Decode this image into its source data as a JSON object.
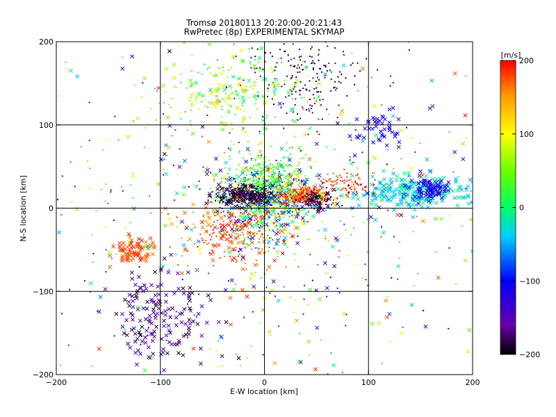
{
  "chart_data": {
    "type": "scatter",
    "title": "Tromsø 20180113 20:20:00-20:21:43",
    "subtitle": "RwPretec (8p) EXPERIMENTAL SKYMAP",
    "xlabel": "E-W location [km]",
    "ylabel": "N-S location [km]",
    "xlim": [
      -200,
      200
    ],
    "ylim": [
      -200,
      200
    ],
    "x_ticks": [
      -200,
      -100,
      0,
      100,
      200
    ],
    "y_ticks": [
      -200,
      -100,
      0,
      100,
      200
    ],
    "x_tick_labels": [
      "−200",
      "−100",
      "0",
      "100",
      "200"
    ],
    "y_tick_labels": [
      "−200",
      "−100",
      "0",
      "100",
      "200"
    ],
    "grid": true,
    "grid_values_x": [
      -100,
      0,
      100
    ],
    "grid_values_y": [
      -100,
      0,
      100
    ],
    "colorbar": {
      "label": "[m/s]",
      "range": [
        -200,
        200
      ],
      "ticks": [
        200,
        100,
        0,
        -100,
        -200
      ],
      "tick_labels": [
        "200",
        "100",
        "0",
        "−100",
        "−200"
      ],
      "colors": [
        "#000000",
        "#6600aa",
        "#0000ff",
        "#00ccff",
        "#00ff66",
        "#66ff00",
        "#ffff00",
        "#ff9900",
        "#ff0000"
      ]
    },
    "marker_types": [
      "dot",
      "x"
    ],
    "clusters": [
      {
        "cx": 0,
        "cy": 10,
        "sx": 22,
        "sy": 22,
        "n": 650,
        "vel": [
          -150,
          120
        ],
        "marker": "mixed"
      },
      {
        "cx": 5,
        "cy": 35,
        "sx": 18,
        "sy": 15,
        "n": 300,
        "vel": [
          0,
          60
        ],
        "marker": "dot"
      },
      {
        "cx": -20,
        "cy": 15,
        "sx": 14,
        "sy": 6,
        "n": 260,
        "vel": [
          -200,
          -170
        ],
        "marker": "mixed"
      },
      {
        "cx": 40,
        "cy": 15,
        "sx": 12,
        "sy": 6,
        "n": 200,
        "vel": [
          150,
          200
        ],
        "marker": "mixed"
      },
      {
        "cx": 50,
        "cy": 8,
        "sx": 8,
        "sy": 5,
        "n": 110,
        "vel": [
          -200,
          -160
        ],
        "marker": "mixed"
      },
      {
        "cx": 140,
        "cy": 20,
        "sx": 30,
        "sy": 10,
        "n": 240,
        "vel": [
          -60,
          0
        ],
        "marker": "x"
      },
      {
        "cx": 160,
        "cy": 22,
        "sx": 10,
        "sy": 7,
        "n": 80,
        "vel": [
          -130,
          -100
        ],
        "marker": "x"
      },
      {
        "cx": 80,
        "cy": 30,
        "sx": 15,
        "sy": 8,
        "n": 90,
        "vel": [
          160,
          200
        ],
        "marker": "dot"
      },
      {
        "cx": 40,
        "cy": 160,
        "sx": 30,
        "sy": 25,
        "n": 190,
        "vel": [
          -200,
          -170
        ],
        "marker": "dot"
      },
      {
        "cx": -30,
        "cy": 140,
        "sx": 35,
        "sy": 22,
        "n": 220,
        "vel": [
          -20,
          130
        ],
        "marker": "mixed"
      },
      {
        "cx": -30,
        "cy": -30,
        "sx": 22,
        "sy": 18,
        "n": 230,
        "vel": [
          150,
          200
        ],
        "marker": "mixed"
      },
      {
        "cx": -125,
        "cy": -50,
        "sx": 10,
        "sy": 10,
        "n": 80,
        "vel": [
          160,
          200
        ],
        "marker": "x"
      },
      {
        "cx": -100,
        "cy": -130,
        "sx": 20,
        "sy": 30,
        "n": 160,
        "vel": [
          -200,
          -130
        ],
        "marker": "x"
      },
      {
        "cx": 110,
        "cy": 95,
        "sx": 12,
        "sy": 10,
        "n": 45,
        "vel": [
          -130,
          -100
        ],
        "marker": "x"
      },
      {
        "cx": 0,
        "cy": 0,
        "sx": 110,
        "sy": 110,
        "n": 750,
        "vel": [
          -200,
          200
        ],
        "marker": "mixed"
      }
    ]
  }
}
